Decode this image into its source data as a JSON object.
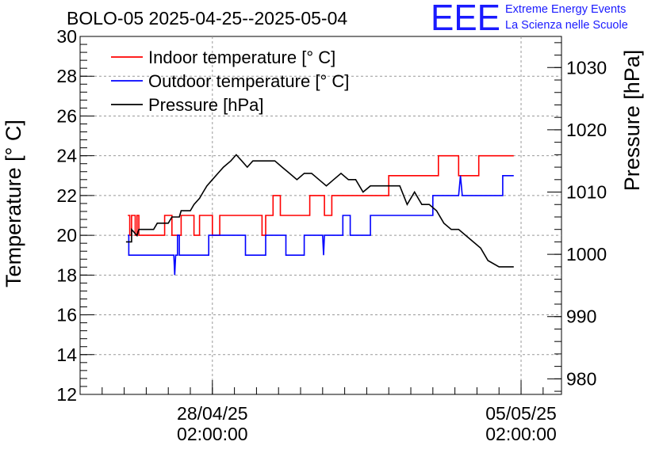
{
  "title": "BOLO-05 2025-04-25--2025-05-04",
  "logo": {
    "letters": "EEE",
    "line1": "Extreme Energy Events",
    "line2": "La Scienza nelle Scuole",
    "color": "#1a1aff"
  },
  "chart_data": {
    "type": "line",
    "ylabel": "Temperature [° C]",
    "y2label": "Pressure [hPa]",
    "ylim": [
      12,
      30
    ],
    "y2lim": [
      977.5,
      1035
    ],
    "yticks": [
      12,
      14,
      16,
      18,
      20,
      22,
      24,
      26,
      28,
      30
    ],
    "y2ticks": [
      980,
      990,
      1000,
      1010,
      1020,
      1030
    ],
    "xlim": [
      "2025-04-25 02:00:00",
      "2025-05-06 00:00:00"
    ],
    "xticks": [
      {
        "x": "2025-04-28 02:00:00",
        "date": "28/04/25",
        "time": "02:00:00"
      },
      {
        "x": "2025-05-05 02:00:00",
        "date": "05/05/25",
        "time": "02:00:00"
      }
    ],
    "grid": true,
    "legend_position": "top-left",
    "series": [
      {
        "name": "Indoor temperature [° C]",
        "color": "#ff0000",
        "axis": "left",
        "points": [
          [
            "2025-04-26 04:00",
            21
          ],
          [
            "2025-04-26 05:00",
            21
          ],
          [
            "2025-04-26 05:00",
            20
          ],
          [
            "2025-04-26 06:00",
            20
          ],
          [
            "2025-04-26 06:00",
            21
          ],
          [
            "2025-04-26 08:00",
            21
          ],
          [
            "2025-04-26 08:00",
            20
          ],
          [
            "2025-04-26 09:00",
            20
          ],
          [
            "2025-04-26 09:00",
            21
          ],
          [
            "2025-04-26 10:00",
            21
          ],
          [
            "2025-04-26 10:00",
            20
          ],
          [
            "2025-04-27 00:00",
            20
          ],
          [
            "2025-04-27 00:00",
            21
          ],
          [
            "2025-04-27 04:00",
            21
          ],
          [
            "2025-04-27 04:00",
            20
          ],
          [
            "2025-04-27 09:00",
            20
          ],
          [
            "2025-04-27 09:00",
            21
          ],
          [
            "2025-04-27 16:00",
            21
          ],
          [
            "2025-04-27 16:00",
            20
          ],
          [
            "2025-04-27 19:00",
            20
          ],
          [
            "2025-04-27 19:00",
            21
          ],
          [
            "2025-04-28 02:00",
            21
          ],
          [
            "2025-04-28 02:00",
            20
          ],
          [
            "2025-04-28 06:00",
            20
          ],
          [
            "2025-04-28 06:00",
            21
          ],
          [
            "2025-04-29 05:00",
            21
          ],
          [
            "2025-04-29 05:00",
            20
          ],
          [
            "2025-04-29 07:00",
            20
          ],
          [
            "2025-04-29 07:00",
            21
          ],
          [
            "2025-04-29 11:00",
            21
          ],
          [
            "2025-04-29 11:00",
            22
          ],
          [
            "2025-04-29 15:00",
            22
          ],
          [
            "2025-04-29 15:00",
            21
          ],
          [
            "2025-04-30 07:00",
            21
          ],
          [
            "2025-04-30 07:00",
            22
          ],
          [
            "2025-04-30 15:00",
            22
          ],
          [
            "2025-04-30 15:00",
            21
          ],
          [
            "2025-04-30 19:00",
            21
          ],
          [
            "2025-04-30 19:00",
            22
          ],
          [
            "2025-05-02 02:00",
            22
          ],
          [
            "2025-05-02 02:00",
            23
          ],
          [
            "2025-05-03 05:00",
            23
          ],
          [
            "2025-05-03 05:00",
            24
          ],
          [
            "2025-05-03 16:00",
            24
          ],
          [
            "2025-05-03 16:00",
            23
          ],
          [
            "2025-05-04 03:00",
            23
          ],
          [
            "2025-05-04 03:00",
            24
          ],
          [
            "2025-05-04 22:00",
            24
          ]
        ]
      },
      {
        "name": "Outdoor temperature [° C]",
        "color": "#0000ff",
        "axis": "left",
        "points": [
          [
            "2025-04-26 04:00",
            20
          ],
          [
            "2025-04-26 04:30",
            20
          ],
          [
            "2025-04-26 04:30",
            19
          ],
          [
            "2025-04-27 05:00",
            19
          ],
          [
            "2025-04-27 05:30",
            18
          ],
          [
            "2025-04-27 06:00",
            19
          ],
          [
            "2025-04-27 07:00",
            19
          ],
          [
            "2025-04-27 07:00",
            20
          ],
          [
            "2025-04-27 08:00",
            20
          ],
          [
            "2025-04-27 08:00",
            19
          ],
          [
            "2025-04-28 00:00",
            19
          ],
          [
            "2025-04-28 00:00",
            20
          ],
          [
            "2025-04-28 20:00",
            20
          ],
          [
            "2025-04-28 20:00",
            19
          ],
          [
            "2025-04-29 07:00",
            19
          ],
          [
            "2025-04-29 07:00",
            20
          ],
          [
            "2025-04-29 18:00",
            20
          ],
          [
            "2025-04-29 18:00",
            19
          ],
          [
            "2025-04-30 04:00",
            19
          ],
          [
            "2025-04-30 04:00",
            20
          ],
          [
            "2025-04-30 14:00",
            20
          ],
          [
            "2025-04-30 14:30",
            19
          ],
          [
            "2025-04-30 15:00",
            20
          ],
          [
            "2025-05-01 01:00",
            20
          ],
          [
            "2025-05-01 01:00",
            21
          ],
          [
            "2025-05-01 05:00",
            21
          ],
          [
            "2025-05-01 05:00",
            20
          ],
          [
            "2025-05-01 16:00",
            20
          ],
          [
            "2025-05-01 16:00",
            21
          ],
          [
            "2025-05-03 02:00",
            21
          ],
          [
            "2025-05-03 02:00",
            22
          ],
          [
            "2025-05-03 16:00",
            22
          ],
          [
            "2025-05-03 17:00",
            23
          ],
          [
            "2025-05-03 18:00",
            22
          ],
          [
            "2025-05-04 16:00",
            22
          ],
          [
            "2025-05-04 16:00",
            23
          ],
          [
            "2025-05-04 22:00",
            23
          ]
        ]
      },
      {
        "name": "Pressure [hPa]",
        "color": "#000000",
        "axis": "right",
        "points": [
          [
            "2025-04-26 03:00",
            1002
          ],
          [
            "2025-04-26 06:00",
            1002
          ],
          [
            "2025-04-26 06:00",
            1004
          ],
          [
            "2025-04-26 09:00",
            1003
          ],
          [
            "2025-04-26 10:00",
            1004
          ],
          [
            "2025-04-26 18:00",
            1004
          ],
          [
            "2025-04-26 20:00",
            1005
          ],
          [
            "2025-04-27 02:00",
            1005
          ],
          [
            "2025-04-27 04:00",
            1006
          ],
          [
            "2025-04-27 08:00",
            1006
          ],
          [
            "2025-04-27 09:00",
            1007
          ],
          [
            "2025-04-27 14:00",
            1007
          ],
          [
            "2025-04-27 16:00",
            1008
          ],
          [
            "2025-04-27 19:00",
            1009
          ],
          [
            "2025-04-27 21:00",
            1010
          ],
          [
            "2025-04-27 23:00",
            1011
          ],
          [
            "2025-04-28 02:00",
            1012
          ],
          [
            "2025-04-28 05:00",
            1013
          ],
          [
            "2025-04-28 08:00",
            1014
          ],
          [
            "2025-04-28 12:00",
            1015
          ],
          [
            "2025-04-28 15:00",
            1016
          ],
          [
            "2025-04-28 18:00",
            1015
          ],
          [
            "2025-04-28 21:00",
            1014
          ],
          [
            "2025-04-29 00:00",
            1015
          ],
          [
            "2025-04-29 04:00",
            1015
          ],
          [
            "2025-04-29 08:00",
            1015
          ],
          [
            "2025-04-29 12:00",
            1015
          ],
          [
            "2025-04-29 16:00",
            1014
          ],
          [
            "2025-04-29 20:00",
            1013
          ],
          [
            "2025-04-30 00:00",
            1012
          ],
          [
            "2025-04-30 04:00",
            1013
          ],
          [
            "2025-04-30 08:00",
            1013
          ],
          [
            "2025-04-30 12:00",
            1012
          ],
          [
            "2025-04-30 16:00",
            1011
          ],
          [
            "2025-04-30 20:00",
            1012
          ],
          [
            "2025-05-01 00:00",
            1013
          ],
          [
            "2025-05-01 04:00",
            1012
          ],
          [
            "2025-05-01 08:00",
            1012
          ],
          [
            "2025-05-01 12:00",
            1010
          ],
          [
            "2025-05-01 16:00",
            1011
          ],
          [
            "2025-05-01 20:00",
            1011
          ],
          [
            "2025-05-02 00:00",
            1011
          ],
          [
            "2025-05-02 04:00",
            1011
          ],
          [
            "2025-05-02 08:00",
            1011
          ],
          [
            "2025-05-02 12:00",
            1008
          ],
          [
            "2025-05-02 16:00",
            1010
          ],
          [
            "2025-05-02 20:00",
            1008
          ],
          [
            "2025-05-03 00:00",
            1008
          ],
          [
            "2025-05-03 04:00",
            1007
          ],
          [
            "2025-05-03 08:00",
            1005
          ],
          [
            "2025-05-03 12:00",
            1004
          ],
          [
            "2025-05-03 16:00",
            1004
          ],
          [
            "2025-05-03 20:00",
            1003
          ],
          [
            "2025-05-04 00:00",
            1002
          ],
          [
            "2025-05-04 04:00",
            1001
          ],
          [
            "2025-05-04 08:00",
            999
          ],
          [
            "2025-05-04 14:00",
            998
          ],
          [
            "2025-05-04 22:00",
            998
          ]
        ]
      }
    ]
  }
}
